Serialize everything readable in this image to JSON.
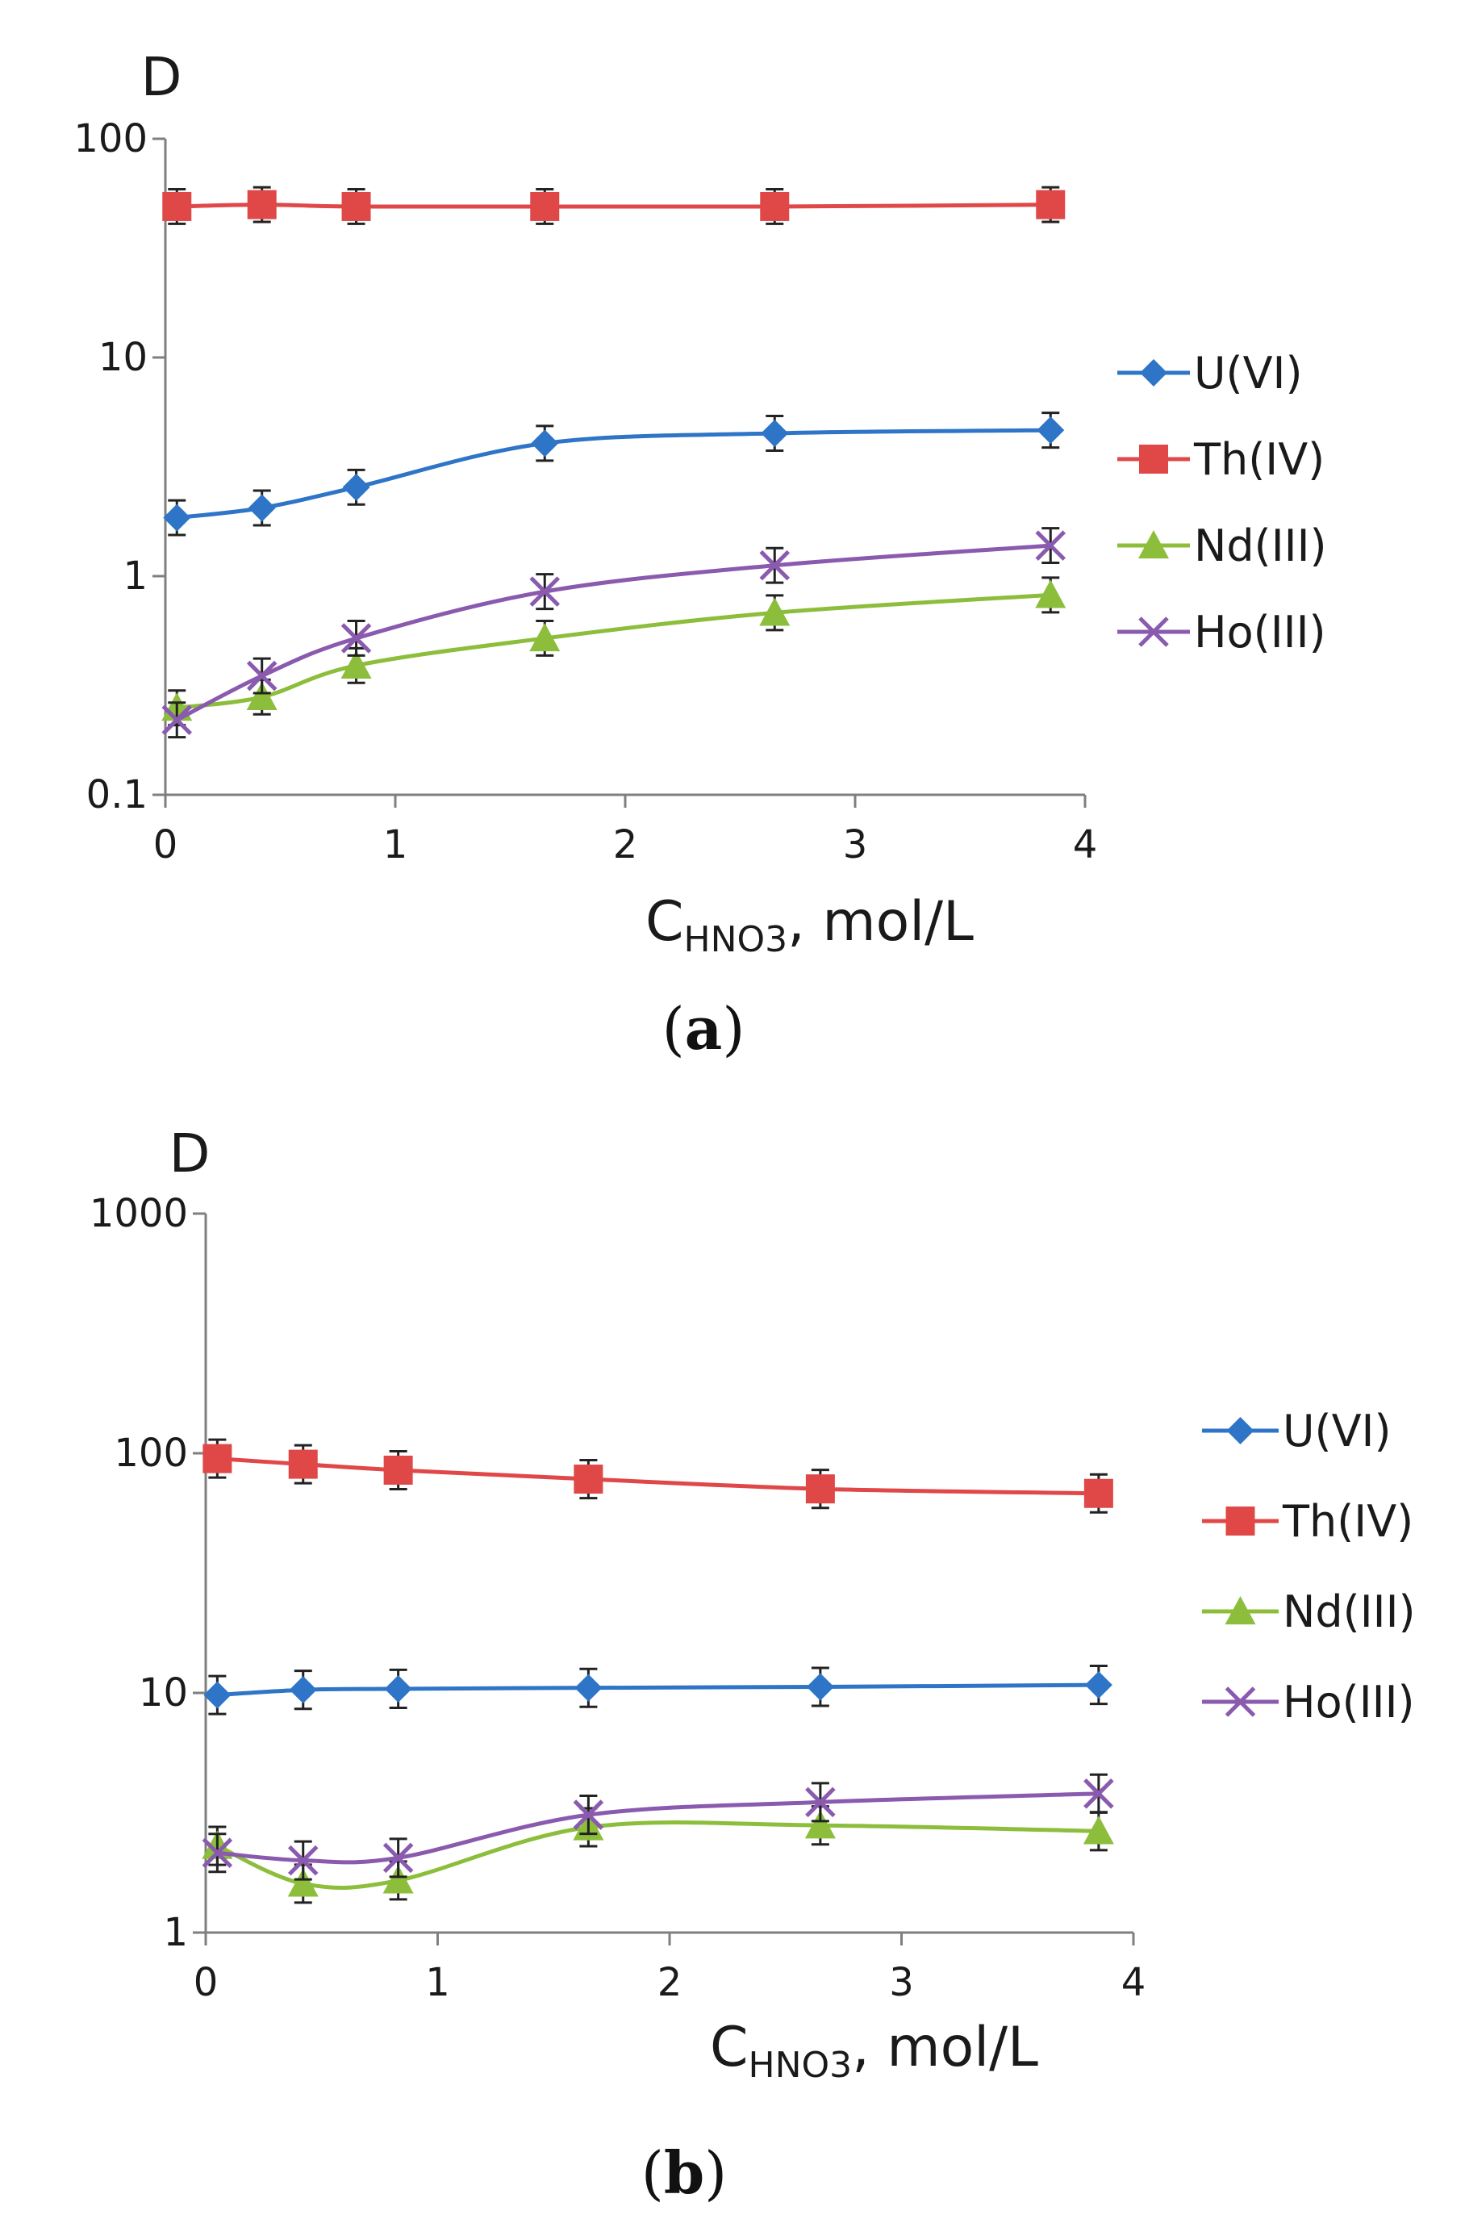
{
  "chart_data": [
    {
      "panel": "a",
      "type": "line",
      "panel_label": "a",
      "ylabel": "D",
      "xlabel": "C",
      "xlabel_sub": "HNO3",
      "xlabel_rest": ", mol/L",
      "yscale": "log",
      "ylim": [
        0.1,
        100
      ],
      "xlim": [
        0,
        4
      ],
      "yticks": [
        "0.1",
        "1",
        "10",
        "100"
      ],
      "xticks": [
        "0",
        "1",
        "2",
        "3",
        "4"
      ],
      "legend": "right",
      "x": [
        0.05,
        0.42,
        0.83,
        1.65,
        2.65,
        3.85
      ],
      "series": [
        {
          "name": "U(VI)",
          "color": "#2E75C7",
          "marker": "diamond",
          "values": [
            1.85,
            2.05,
            2.55,
            4.05,
            4.5,
            4.65
          ]
        },
        {
          "name": "Th(IV)",
          "color": "#E04848",
          "marker": "square",
          "values": [
            49,
            50,
            49,
            49,
            49,
            50
          ]
        },
        {
          "name": "Nd(III)",
          "color": "#8CBE3C",
          "marker": "triangle",
          "values": [
            0.25,
            0.28,
            0.39,
            0.52,
            0.68,
            0.82
          ]
        },
        {
          "name": "Ho(III)",
          "color": "#8A5AAE",
          "marker": "x",
          "values": [
            0.22,
            0.35,
            0.52,
            0.85,
            1.12,
            1.38
          ]
        }
      ]
    },
    {
      "panel": "b",
      "type": "line",
      "panel_label": "b",
      "ylabel": "D",
      "xlabel": "C",
      "xlabel_sub": "HNO3",
      "xlabel_rest": ", mol/L",
      "yscale": "log",
      "ylim": [
        1,
        1000
      ],
      "xlim": [
        0,
        4
      ],
      "yticks": [
        "1",
        "10",
        "100",
        "1000"
      ],
      "xticks": [
        "0",
        "1",
        "2",
        "3",
        "4"
      ],
      "legend": "right",
      "x": [
        0.05,
        0.42,
        0.83,
        1.65,
        2.65,
        3.85
      ],
      "series": [
        {
          "name": "U(VI)",
          "color": "#2E75C7",
          "marker": "diamond",
          "values": [
            9.8,
            10.3,
            10.4,
            10.5,
            10.6,
            10.8
          ]
        },
        {
          "name": "Th(IV)",
          "color": "#E04848",
          "marker": "square",
          "values": [
            95,
            90,
            85,
            78,
            71,
            68
          ]
        },
        {
          "name": "Nd(III)",
          "color": "#8CBE3C",
          "marker": "triangle",
          "values": [
            2.3,
            1.6,
            1.65,
            2.75,
            2.8,
            2.65
          ]
        },
        {
          "name": "Ho(III)",
          "color": "#8A5AAE",
          "marker": "x",
          "values": [
            2.15,
            2.0,
            2.05,
            3.1,
            3.5,
            3.8
          ]
        }
      ]
    }
  ]
}
